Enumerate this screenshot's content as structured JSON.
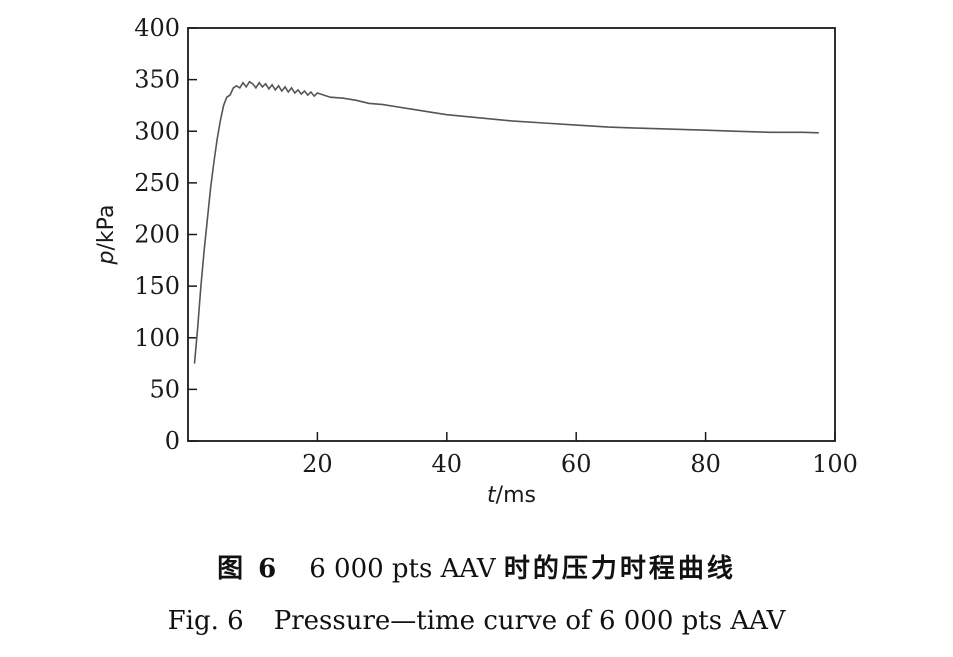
{
  "chart_data": {
    "type": "line",
    "xlabel_var": "t",
    "xlabel_unit": "/ms",
    "ylabel_var": "p",
    "ylabel_unit": "/kPa",
    "xlim": [
      0,
      100
    ],
    "ylim": [
      0,
      400
    ],
    "xticks": [
      20,
      40,
      60,
      80,
      100
    ],
    "yticks": [
      0,
      50,
      100,
      150,
      200,
      250,
      300,
      350,
      400
    ],
    "grid": false,
    "series": [
      {
        "color": "#555555",
        "x": [
          1.0,
          1.5,
          2.0,
          2.5,
          3.0,
          3.5,
          4.0,
          4.5,
          5.0,
          5.5,
          6.0,
          6.5,
          7.0,
          7.5,
          8.0,
          8.5,
          9.0,
          9.5,
          10.0,
          10.5,
          11.0,
          11.5,
          12.0,
          12.5,
          13.0,
          13.5,
          14.0,
          14.5,
          15.0,
          15.5,
          16.0,
          16.5,
          17.0,
          17.5,
          18.0,
          18.5,
          19.0,
          19.5,
          20.0,
          22.0,
          24.0,
          26.0,
          28.0,
          30.0,
          32.0,
          35.0,
          38.0,
          40.0,
          45.0,
          50.0,
          55.0,
          60.0,
          65.0,
          70.0,
          75.0,
          80.0,
          85.0,
          90.0,
          95.0,
          97.5
        ],
        "y": [
          75,
          110,
          150,
          185,
          215,
          245,
          270,
          292,
          310,
          325,
          333,
          335,
          342,
          344,
          342,
          347,
          343,
          348,
          346,
          342,
          347,
          343,
          346,
          341,
          345,
          340,
          344,
          339,
          343,
          338,
          342,
          337,
          340,
          336,
          339,
          335,
          338,
          334,
          337,
          333,
          332,
          330,
          327,
          326,
          324,
          321,
          318,
          316,
          313,
          310,
          308,
          306,
          304,
          303,
          302,
          301,
          300,
          299,
          299,
          298.5
        ]
      }
    ]
  },
  "caption_cn": {
    "label": "图 6",
    "number": "6 000 pts AAV",
    "title": "时的压力时程曲线"
  },
  "caption_en": {
    "label": "Fig. 6",
    "title": "Pressure—time curve of 6 000 pts AAV"
  }
}
